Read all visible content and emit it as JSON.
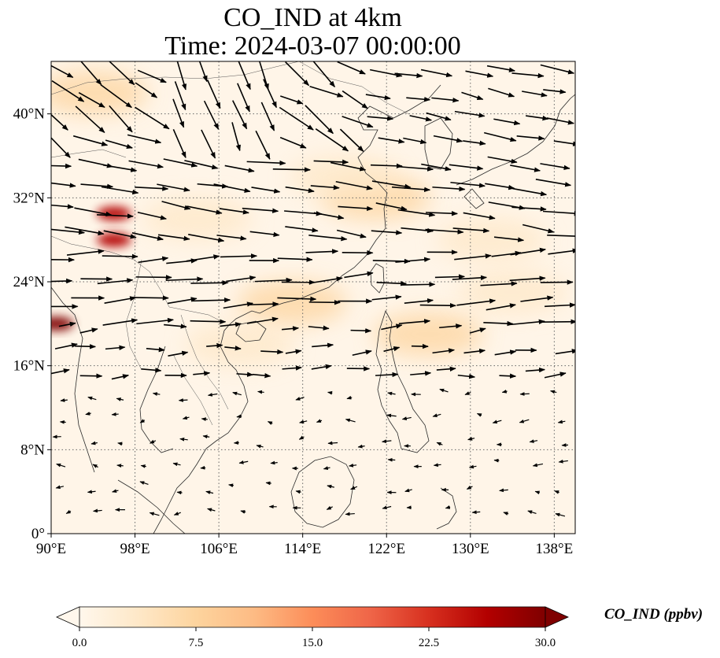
{
  "title": {
    "line1": "CO_IND at 4km",
    "line2": "Time: 2024-03-07 00:00:00"
  },
  "map": {
    "extent": {
      "lon_min": 90,
      "lon_max": 140,
      "lat_min": 0,
      "lat_max": 45
    },
    "gridlines": true,
    "x_ticks": [
      "90°E",
      "98°E",
      "106°E",
      "114°E",
      "122°E",
      "130°E",
      "138°E"
    ],
    "y_ticks": [
      "0°",
      "8°N",
      "16°N",
      "24°N",
      "32°N",
      "40°N"
    ],
    "x_tick_values": [
      90,
      98,
      106,
      114,
      122,
      130,
      138
    ],
    "y_tick_values": [
      0,
      8,
      16,
      24,
      32,
      40
    ]
  },
  "colorbar": {
    "label": "CO_IND (ppbv)",
    "ticks": [
      "0.0",
      "7.5",
      "15.0",
      "22.5",
      "30.0"
    ],
    "tick_values": [
      0,
      7.5,
      15,
      22.5,
      30
    ],
    "range": [
      0,
      30
    ],
    "colormap": "OrRd",
    "colors": [
      "#fff7ec",
      "#fee8c8",
      "#fdd49e",
      "#fdbb84",
      "#fc8d59",
      "#ef6548",
      "#d7301f",
      "#b30000",
      "#7f0000"
    ]
  },
  "concentration_plumes": [
    {
      "lon": 121,
      "lat": 32,
      "value": 6
    },
    {
      "lon": 118,
      "lat": 34,
      "value": 5
    },
    {
      "lon": 104,
      "lat": 30,
      "value": 5
    },
    {
      "lon": 113,
      "lat": 22,
      "value": 6
    },
    {
      "lon": 126,
      "lat": 19,
      "value": 6
    },
    {
      "lon": 134,
      "lat": 23,
      "value": 5
    },
    {
      "lon": 132,
      "lat": 28,
      "value": 4
    },
    {
      "lon": 96,
      "lat": 28,
      "value": 28
    },
    {
      "lon": 96,
      "lat": 30.5,
      "value": 26
    },
    {
      "lon": 90.5,
      "lat": 20,
      "value": 30
    },
    {
      "lon": 94,
      "lat": 42,
      "value": 7
    },
    {
      "lon": 108,
      "lat": 18,
      "value": 4
    }
  ],
  "wind_vectors_note": "Black arrows indicate wind direction and speed; strong westerlies north of 20°N, weak variable winds to the south."
}
